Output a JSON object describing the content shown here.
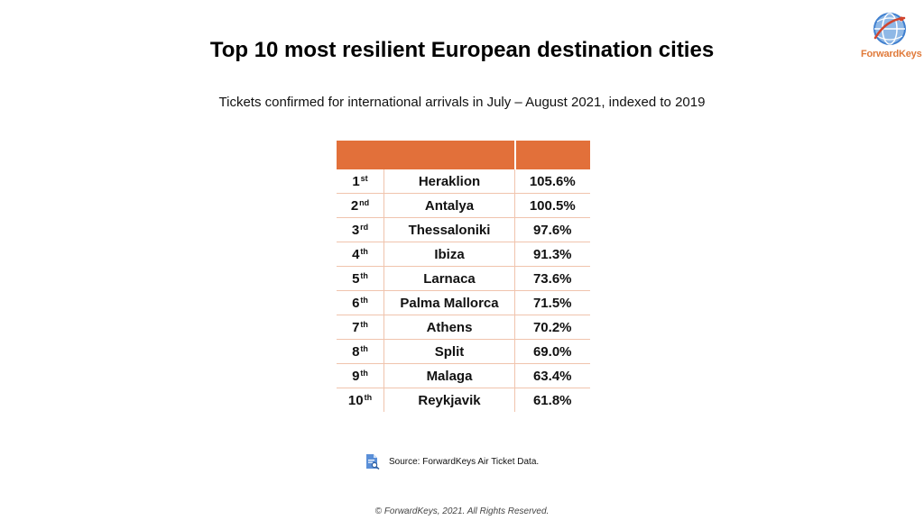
{
  "header": {
    "title": "Top 10 most resilient European destination cities",
    "subtitle": "Tickets confirmed for international arrivals in July – August 2021, indexed to 2019"
  },
  "logo": {
    "text": "ForwardKeys",
    "icon": "globe-icon",
    "color": "#e07a3a"
  },
  "chart_data": {
    "type": "table",
    "title": "Top 10 most resilient European destination cities",
    "subtitle": "Tickets confirmed for international arrivals in July – August 2021, indexed to 2019",
    "columns": [
      "",
      ""
    ],
    "header_color": "#e2703a",
    "rows": [
      {
        "rank": "1",
        "suffix": "st",
        "city": "Heraklion",
        "value": "105.6%"
      },
      {
        "rank": "2",
        "suffix": "nd",
        "city": "Antalya",
        "value": "100.5%"
      },
      {
        "rank": "3",
        "suffix": "rd",
        "city": "Thessaloniki",
        "value": "97.6%"
      },
      {
        "rank": "4",
        "suffix": "th",
        "city": "Ibiza",
        "value": "91.3%"
      },
      {
        "rank": "5",
        "suffix": "th",
        "city": "Larnaca",
        "value": "73.6%"
      },
      {
        "rank": "6",
        "suffix": "th",
        "city": "Palma Mallorca",
        "value": "71.5%"
      },
      {
        "rank": "7",
        "suffix": "th",
        "city": "Athens",
        "value": "70.2%"
      },
      {
        "rank": "8",
        "suffix": "th",
        "city": "Split",
        "value": "69.0%"
      },
      {
        "rank": "9",
        "suffix": "th",
        "city": "Malaga",
        "value": "63.4%"
      },
      {
        "rank": "10",
        "suffix": "th",
        "city": "Reykjavik",
        "value": "61.8%"
      }
    ]
  },
  "source": {
    "text": "Source: ForwardKeys Air Ticket Data.",
    "icon": "document-search-icon"
  },
  "footer": {
    "text": "© ForwardKeys, 2021. All Rights Reserved."
  }
}
